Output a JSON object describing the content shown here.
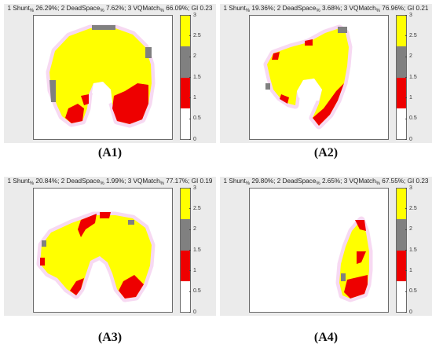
{
  "colors": {
    "yellow": "#ffff00",
    "gray": "#808080",
    "red": "#ee0000",
    "white": "#ffffff",
    "halo": "#f7d9f2",
    "panel_bg": "#ebebeb"
  },
  "colorbar_ticks": [
    "3",
    "2.5",
    "2",
    "1.5",
    "1",
    "0.5",
    "0"
  ],
  "panels": [
    {
      "id": "A1",
      "title": {
        "p1": "1 Shunt",
        "s1": "%",
        "p2": " 26.29%; 2 DeadSpace",
        "s2": "%",
        "p3": " 7.62%; 3 VQMatch",
        "s3": "%",
        "p4": " 66.09%; GI 0.23"
      },
      "caption_pre": "(",
      "caption_label": "A1",
      "caption_post": ")"
    },
    {
      "id": "A2",
      "title": {
        "p1": "1 Shunt",
        "s1": "%",
        "p2": " 19.36%; 2 DeadSpace",
        "s2": "%",
        "p3": " 3.68%; 3 VQMatch",
        "s3": "%",
        "p4": " 76.96%; GI 0.21"
      },
      "caption_pre": "(",
      "caption_label": "A2",
      "caption_post": ")"
    },
    {
      "id": "A3",
      "title": {
        "p1": "1 Shunt",
        "s1": "%",
        "p2": " 20.84%; 2 DeadSpace",
        "s2": "%",
        "p3": " 1.99%; 3 VQMatch",
        "s3": "%",
        "p4": " 77.17%; GI 0.19"
      },
      "caption_pre": "(",
      "caption_label": "A3",
      "caption_post": ")"
    },
    {
      "id": "A4",
      "title": {
        "p1": "1 Shunt",
        "s1": "%",
        "p2": " 29.80%; 2 DeadSpace",
        "s2": "%",
        "p3": " 2.65%; 3 VQMatch",
        "s3": "%",
        "p4": " 67.55%; GI 0.23"
      },
      "caption_pre": "(",
      "caption_label": "A4",
      "caption_post": ")"
    }
  ]
}
